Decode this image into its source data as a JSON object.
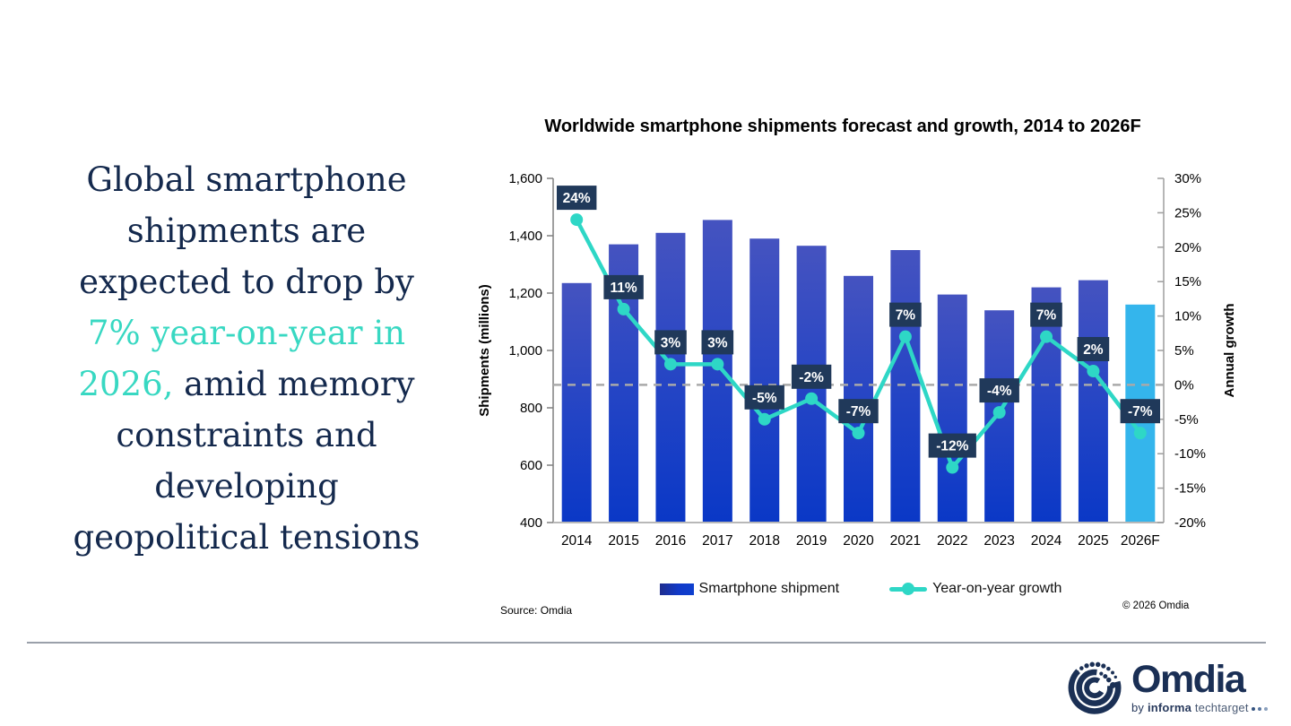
{
  "headline": {
    "lines": [
      [
        {
          "t": "Global smartphone",
          "c": "navy"
        }
      ],
      [
        {
          "t": "shipments are",
          "c": "navy"
        }
      ],
      [
        {
          "t": "expected to drop by",
          "c": "navy"
        }
      ],
      [
        {
          "t": "7% year-on-year in",
          "c": "teal"
        }
      ],
      [
        {
          "t": "2026,",
          "c": "teal"
        },
        {
          "t": " amid memory",
          "c": "navy"
        }
      ],
      [
        {
          "t": "constraints and",
          "c": "navy"
        }
      ],
      [
        {
          "t": "developing",
          "c": "navy"
        }
      ],
      [
        {
          "t": "geopolitical tensions",
          "c": "navy"
        }
      ]
    ]
  },
  "chart_data": {
    "type": "combo_bar_line",
    "title": "Worldwide smartphone shipments forecast and growth, 2014 to 2026F",
    "categories": [
      "2014",
      "2015",
      "2016",
      "2017",
      "2018",
      "2019",
      "2020",
      "2021",
      "2022",
      "2023",
      "2024",
      "2025",
      "2026F"
    ],
    "series": [
      {
        "name": "Smartphone shipment",
        "type": "bar",
        "axis": "left",
        "values": [
          1235,
          1370,
          1410,
          1455,
          1390,
          1365,
          1260,
          1350,
          1195,
          1140,
          1220,
          1245,
          1160
        ],
        "highlight_index": 12,
        "bar_color_top": "#4553C0",
        "bar_color_mid": "#2344C5",
        "bar_color_bottom": "#0A38C6",
        "highlight_color": "#34B5EC"
      },
      {
        "name": "Year-on-year growth",
        "type": "line",
        "axis": "right",
        "values": [
          24,
          11,
          3,
          3,
          -5,
          -2,
          -7,
          7,
          -12,
          -4,
          7,
          2,
          -7
        ],
        "labels": [
          "24%",
          "11%",
          "3%",
          "3%",
          "-5%",
          "-2%",
          "-7%",
          "7%",
          "-12%",
          "-4%",
          "7%",
          "2%",
          "-7%"
        ],
        "color": "#2ED7C6",
        "label_bg": "#20395A",
        "label_text_color": "#FFFFFF"
      }
    ],
    "left_axis": {
      "label": "Shipments (millions)",
      "min": 400,
      "max": 1600,
      "ticks": [
        {
          "v": 1600,
          "t": "1,600"
        },
        {
          "v": 1400,
          "t": "1,400"
        },
        {
          "v": 1200,
          "t": "1,200"
        },
        {
          "v": 1000,
          "t": "1,000"
        },
        {
          "v": 800,
          "t": "800"
        },
        {
          "v": 600,
          "t": "600"
        },
        {
          "v": 400,
          "t": "400"
        }
      ]
    },
    "right_axis": {
      "label": "Annual growth",
      "min": -20,
      "max": 30,
      "ticks": [
        {
          "v": 30,
          "t": "30%"
        },
        {
          "v": 25,
          "t": "25%"
        },
        {
          "v": 20,
          "t": "20%"
        },
        {
          "v": 15,
          "t": "15%"
        },
        {
          "v": 10,
          "t": "10%"
        },
        {
          "v": 5,
          "t": "5%"
        },
        {
          "v": 0,
          "t": "0%"
        },
        {
          "v": -5,
          "t": "-5%"
        },
        {
          "v": -10,
          "t": "-10%"
        },
        {
          "v": -15,
          "t": "-15%"
        },
        {
          "v": -20,
          "t": "-20%"
        }
      ]
    },
    "zero_line": {
      "value": 0,
      "axis": "right",
      "color": "#A9A9A9"
    },
    "legend": [
      {
        "label": "Smartphone shipment",
        "marker": "bar"
      },
      {
        "label": "Year-on-year growth",
        "marker": "line"
      }
    ],
    "legend_position": "bottom",
    "grid": false
  },
  "footer": {
    "source": "Source: Omdia",
    "copyright": "© 2026 Omdia"
  },
  "logo": {
    "brand": "Omdia",
    "tagline_by": "by ",
    "tagline_informa": "informa",
    "tagline_techtarget": " techtarget"
  }
}
